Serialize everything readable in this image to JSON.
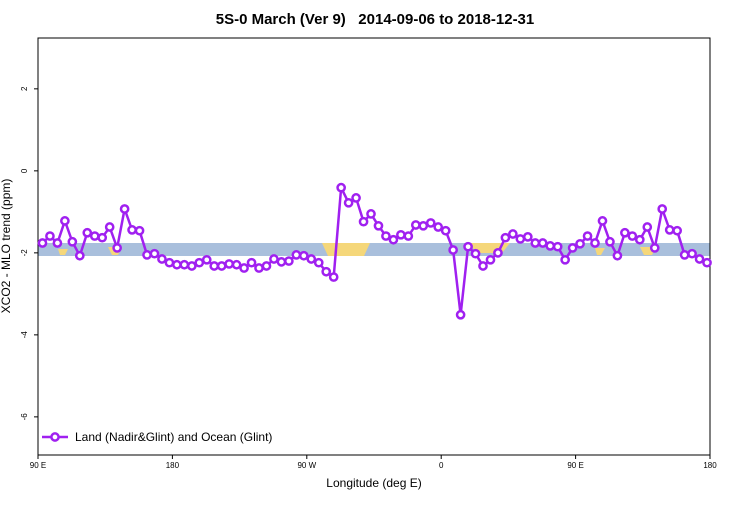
{
  "chart_data": {
    "type": "line",
    "title": "5S-0 March (Ver 9)   2014-09-06 to 2018-12-31",
    "x_label": "Longitude (deg E)",
    "y_label": "XCO2 - MLO trend (ppm)",
    "x": [
      93,
      98,
      103,
      108,
      113,
      118,
      123,
      128,
      133,
      138,
      143,
      148,
      153,
      158,
      163,
      168,
      173,
      178,
      183,
      188,
      193,
      198,
      203,
      208,
      213,
      218,
      223,
      228,
      233,
      238,
      243,
      248,
      253,
      258,
      263,
      268,
      273,
      278,
      283,
      288,
      293,
      298,
      303,
      308,
      313,
      318,
      323,
      328,
      333,
      338,
      343,
      348,
      353,
      358,
      363,
      368,
      373,
      378,
      383,
      388,
      393,
      398,
      403,
      408,
      413,
      418,
      423,
      428,
      433,
      438,
      443,
      448,
      453,
      458,
      463,
      468,
      473,
      478,
      483,
      488,
      493,
      498,
      503,
      508,
      513,
      518,
      523,
      528,
      533,
      538
    ],
    "series": [
      {
        "name": "Land (Nadir&Glint) and Ocean (Glint)",
        "color": "#a020f0",
        "values": [
          -1.76,
          -1.59,
          -1.76,
          -1.22,
          -1.73,
          -2.07,
          -1.51,
          -1.59,
          -1.63,
          -1.37,
          -1.88,
          -0.93,
          -1.44,
          -1.46,
          -2.05,
          -2.02,
          -2.15,
          -2.24,
          -2.29,
          -2.29,
          -2.32,
          -2.24,
          -2.17,
          -2.32,
          -2.32,
          -2.27,
          -2.29,
          -2.37,
          -2.24,
          -2.37,
          -2.32,
          -2.15,
          -2.22,
          -2.2,
          -2.05,
          -2.07,
          -2.15,
          -2.24,
          -2.46,
          -2.59,
          -0.41,
          -0.78,
          -0.66,
          -1.24,
          -1.05,
          -1.34,
          -1.59,
          -1.68,
          -1.56,
          -1.59,
          -1.32,
          -1.34,
          -1.27,
          -1.37,
          -1.46,
          -1.93,
          -3.51,
          -1.85,
          -2.02,
          -2.32,
          -2.17,
          -2.0,
          -1.63,
          -1.54,
          -1.66,
          -1.61,
          -1.76,
          -1.76,
          -1.83,
          -1.85,
          -2.17,
          -1.88,
          -1.78,
          -1.59,
          -1.76,
          -1.22,
          -1.73,
          -2.07,
          -1.51,
          -1.59,
          -1.68,
          -1.37,
          -1.88,
          -0.93,
          -1.44,
          -1.46,
          -2.05,
          -2.02,
          -2.15,
          -2.24
        ]
      }
    ],
    "xlim": [
      90,
      540
    ],
    "xticks": [
      {
        "value": 90,
        "label": "90 E"
      },
      180,
      {
        "value": 270,
        "label": "90 W"
      },
      {
        "value": 360,
        "label": "0"
      },
      {
        "value": 450,
        "label": "90 E"
      },
      {
        "value": 540,
        "label": "180"
      }
    ],
    "ylim": [
      -6.93,
      3.24
    ],
    "yticks": [
      2,
      0,
      -2,
      -4,
      -6
    ],
    "legend": "bottom-left"
  }
}
